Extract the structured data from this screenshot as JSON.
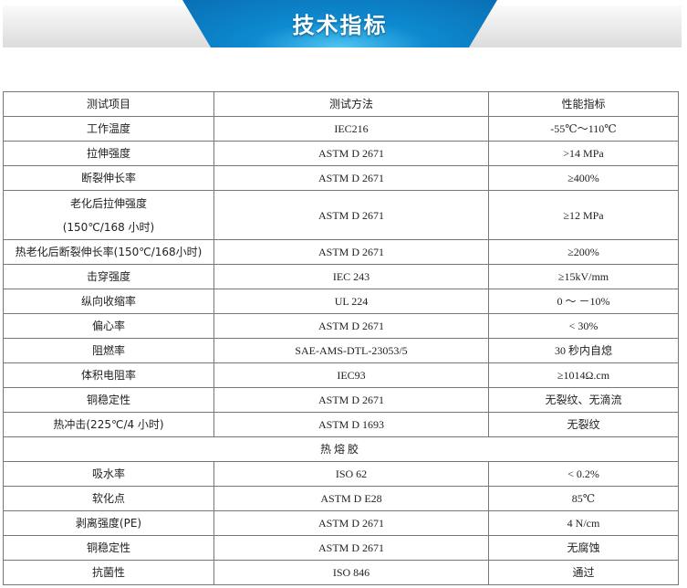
{
  "title": "技术指标",
  "header": [
    "测试项目",
    "测试方法",
    "性能指标"
  ],
  "rows": [
    [
      "工作温度",
      "IEC216",
      "-55℃～110℃"
    ],
    [
      "拉伸强度",
      "ASTM D 2671",
      ">14 MPa"
    ],
    [
      "断裂伸长率",
      "ASTM D 2671",
      "≥400%"
    ],
    [
      "老化后拉伸强度\n(150℃/168 小时)",
      "ASTM D 2671",
      "≥12 MPa"
    ],
    [
      "热老化后断裂伸长率(150℃/168小时)",
      "ASTM D 2671",
      "≥200%"
    ],
    [
      "击穿强度",
      "IEC 243",
      "≥15kV/mm"
    ],
    [
      "纵向收缩率",
      "UL 224",
      "0 ～ －10%"
    ],
    [
      "偏心率",
      "ASTM D 2671",
      "< 30%"
    ],
    [
      "阻燃率",
      "SAE-AMS-DTL-23053/5",
      "30 秒内自熄"
    ],
    [
      "体积电阻率",
      "IEC93",
      "≥1014Ω.cm"
    ],
    [
      "铜稳定性",
      "ASTM D 2671",
      "无裂纹、无滴流"
    ],
    [
      "热冲击(225℃/4 小时)",
      "ASTM D 1693",
      "无裂纹"
    ]
  ],
  "section": "热熔胶",
  "rows2": [
    [
      "吸水率",
      "ISO 62",
      "< 0.2%"
    ],
    [
      "软化点",
      "ASTM D E28",
      "85℃"
    ],
    [
      "剥离强度(PE)",
      "ASTM D 2671",
      "4 N/cm"
    ],
    [
      "铜稳定性",
      "ASTM D 2671",
      "无腐蚀"
    ],
    [
      "抗菌性",
      "ISO 846",
      "通过"
    ]
  ],
  "colors": {
    "ribbon": "#0d8ad0",
    "border": "#777777"
  }
}
